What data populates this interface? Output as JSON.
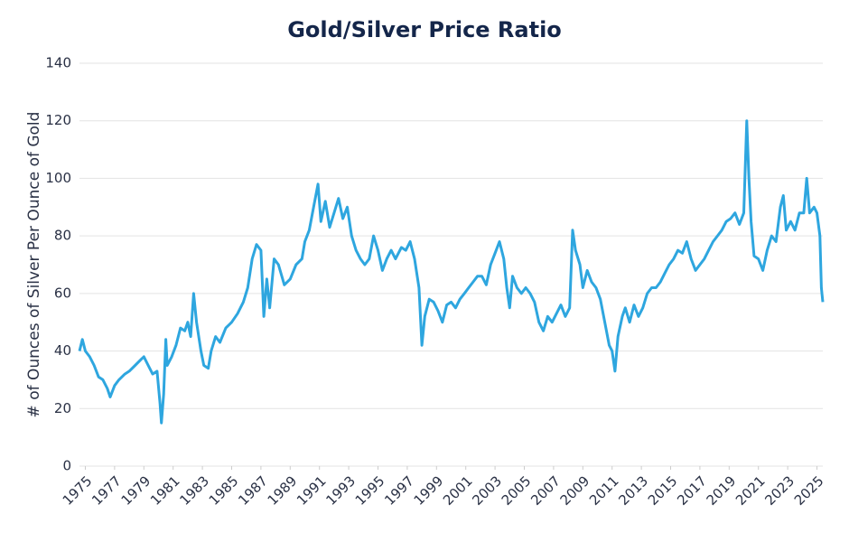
{
  "chart_data": {
    "type": "line",
    "title": "Gold/Silver Price Ratio",
    "y_label": "# of Ounces of Silver Per Ounce of Gold",
    "xlim": [
      1974.6,
      2025.4
    ],
    "ylim": [
      0,
      140
    ],
    "xticks": [
      1975,
      1977,
      1979,
      1981,
      1983,
      1985,
      1987,
      1989,
      1991,
      1993,
      1995,
      1997,
      1999,
      2001,
      2003,
      2005,
      2007,
      2009,
      2011,
      2013,
      2015,
      2017,
      2019,
      2021,
      2023,
      2025
    ],
    "yticks": [
      0,
      20,
      40,
      60,
      80,
      100,
      120,
      140
    ],
    "grid": true,
    "series": [
      {
        "name": "Gold/Silver Price Ratio",
        "color": "#2ea6df",
        "x": [
          1974.6,
          1974.8,
          1975.0,
          1975.3,
          1975.6,
          1975.9,
          1976.2,
          1976.5,
          1976.7,
          1977.0,
          1977.3,
          1977.7,
          1978.0,
          1978.4,
          1978.8,
          1979.0,
          1979.3,
          1979.6,
          1979.9,
          1980.1,
          1980.2,
          1980.35,
          1980.5,
          1980.6,
          1980.9,
          1981.2,
          1981.5,
          1981.8,
          1982.0,
          1982.2,
          1982.4,
          1982.6,
          1982.9,
          1983.1,
          1983.4,
          1983.6,
          1983.9,
          1984.2,
          1984.6,
          1985.0,
          1985.4,
          1985.8,
          1986.1,
          1986.4,
          1986.7,
          1987.0,
          1987.2,
          1987.4,
          1987.6,
          1987.9,
          1988.2,
          1988.6,
          1989.0,
          1989.4,
          1989.8,
          1990.0,
          1990.3,
          1990.6,
          1990.9,
          1991.1,
          1991.4,
          1991.7,
          1992.0,
          1992.3,
          1992.6,
          1992.9,
          1993.2,
          1993.5,
          1993.8,
          1994.1,
          1994.4,
          1994.7,
          1995.0,
          1995.3,
          1995.6,
          1995.9,
          1996.2,
          1996.6,
          1996.9,
          1997.2,
          1997.5,
          1997.8,
          1998.0,
          1998.2,
          1998.5,
          1998.8,
          1999.1,
          1999.4,
          1999.7,
          2000.0,
          2000.3,
          2000.6,
          2000.9,
          2001.2,
          2001.5,
          2001.8,
          2002.1,
          2002.4,
          2002.7,
          2003.0,
          2003.3,
          2003.6,
          2003.8,
          2004.0,
          2004.2,
          2004.5,
          2004.8,
          2005.1,
          2005.4,
          2005.7,
          2006.0,
          2006.3,
          2006.6,
          2006.9,
          2007.2,
          2007.5,
          2007.8,
          2008.1,
          2008.3,
          2008.5,
          2008.8,
          2009.0,
          2009.3,
          2009.6,
          2009.9,
          2010.2,
          2010.5,
          2010.8,
          2011.0,
          2011.2,
          2011.4,
          2011.7,
          2011.9,
          2012.2,
          2012.5,
          2012.8,
          2013.1,
          2013.4,
          2013.7,
          2014.0,
          2014.3,
          2014.6,
          2014.9,
          2015.2,
          2015.5,
          2015.8,
          2016.1,
          2016.4,
          2016.7,
          2017.0,
          2017.3,
          2017.6,
          2017.9,
          2018.2,
          2018.5,
          2018.8,
          2019.1,
          2019.4,
          2019.7,
          2020.0,
          2020.2,
          2020.35,
          2020.5,
          2020.7,
          2021.0,
          2021.3,
          2021.6,
          2021.9,
          2022.2,
          2022.5,
          2022.7,
          2022.9,
          2023.2,
          2023.5,
          2023.8,
          2024.1,
          2024.3,
          2024.5,
          2024.8,
          2025.0,
          2025.2,
          2025.3,
          2025.4
        ],
        "values": [
          40,
          44,
          40,
          38,
          35,
          31,
          30,
          27,
          24,
          28,
          30,
          32,
          33,
          35,
          37,
          38,
          35,
          32,
          33,
          22,
          15,
          25,
          44,
          35,
          38,
          42,
          48,
          47,
          50,
          45,
          60,
          50,
          40,
          35,
          34,
          40,
          45,
          43,
          48,
          50,
          53,
          57,
          62,
          72,
          77,
          75,
          52,
          65,
          55,
          72,
          70,
          63,
          65,
          70,
          72,
          78,
          82,
          90,
          98,
          85,
          92,
          83,
          88,
          93,
          86,
          90,
          80,
          75,
          72,
          70,
          72,
          80,
          75,
          68,
          72,
          75,
          72,
          76,
          75,
          78,
          72,
          62,
          42,
          52,
          58,
          57,
          54,
          50,
          56,
          57,
          55,
          58,
          60,
          62,
          64,
          66,
          66,
          63,
          70,
          74,
          78,
          72,
          62,
          55,
          66,
          62,
          60,
          62,
          60,
          57,
          50,
          47,
          52,
          50,
          53,
          56,
          52,
          55,
          82,
          75,
          70,
          62,
          68,
          64,
          62,
          58,
          50,
          42,
          40,
          33,
          45,
          52,
          55,
          50,
          56,
          52,
          55,
          60,
          62,
          62,
          64,
          67,
          70,
          72,
          75,
          74,
          78,
          72,
          68,
          70,
          72,
          75,
          78,
          80,
          82,
          85,
          86,
          88,
          84,
          88,
          120,
          100,
          85,
          73,
          72,
          68,
          75,
          80,
          78,
          90,
          94,
          82,
          85,
          82,
          88,
          88,
          100,
          88,
          90,
          88,
          80,
          62,
          57
        ]
      }
    ]
  }
}
